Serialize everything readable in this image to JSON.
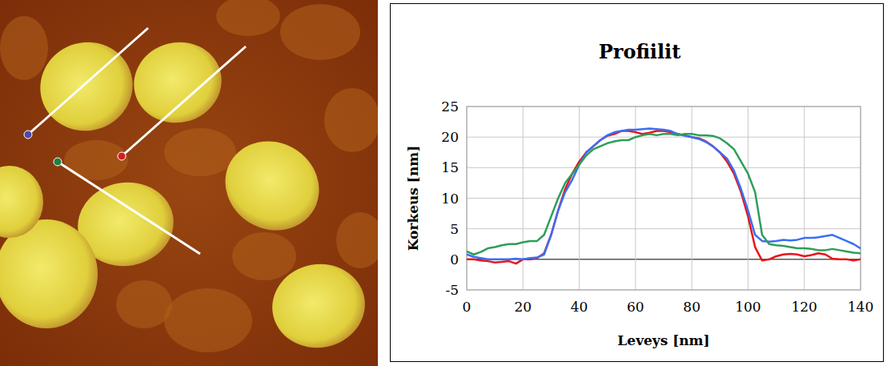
{
  "chart_data": {
    "type": "line",
    "title": "Profiilit",
    "x_label": "Leveys [nm]",
    "y_label": "Korkeus [nm]",
    "x": [
      0,
      2.5,
      5,
      7.5,
      10,
      12.5,
      15,
      17.5,
      20,
      22.5,
      25,
      27.5,
      30,
      32.5,
      35,
      37.5,
      40,
      42.5,
      45,
      47.5,
      50,
      52.5,
      55,
      57.5,
      60,
      62.5,
      65,
      67.5,
      70,
      72.5,
      75,
      77.5,
      80,
      82.5,
      85,
      87.5,
      90,
      92.5,
      95,
      97.5,
      100,
      102.5,
      105,
      107.5,
      110,
      112.5,
      115,
      117.5,
      120,
      122.5,
      125,
      127.5,
      130,
      132.5,
      135,
      137.5,
      140
    ],
    "series": [
      {
        "color": "#e8161b",
        "values": [
          0,
          0,
          -0.2,
          -0.3,
          -0.5,
          -0.4,
          -0.3,
          -0.7,
          0,
          0,
          0.2,
          1,
          4,
          8,
          11.5,
          14,
          16,
          17.5,
          18.5,
          19.5,
          20.2,
          20.5,
          21,
          21,
          20.8,
          20.5,
          20.7,
          21,
          21,
          20.8,
          20.5,
          20.3,
          20,
          19.8,
          19.3,
          18.5,
          17.5,
          16,
          14,
          11,
          7,
          2,
          -0.2,
          0,
          0.5,
          0.8,
          0.9,
          0.8,
          0.5,
          0.7,
          1,
          0.8,
          0.1,
          0,
          0,
          -0.2,
          0
        ]
      },
      {
        "color": "#3a6ef5",
        "values": [
          0.8,
          0.4,
          0.2,
          0,
          0,
          0,
          0,
          0.1,
          0,
          0.2,
          0.3,
          0.8,
          4,
          8,
          11,
          13,
          15.5,
          17.5,
          18.5,
          19.5,
          20.3,
          20.8,
          21,
          21.2,
          21.2,
          21.3,
          21.4,
          21.3,
          21.2,
          21,
          20.5,
          20.2,
          20,
          19.7,
          19.2,
          18.5,
          17.5,
          16.5,
          14.5,
          11.5,
          8,
          4,
          3,
          2.9,
          3,
          3.2,
          3.1,
          3.2,
          3.5,
          3.5,
          3.6,
          3.8,
          4,
          3.5,
          3,
          2.5,
          1.8
        ]
      },
      {
        "color": "#2e9e5a",
        "values": [
          1.3,
          0.8,
          1.2,
          1.8,
          2,
          2.3,
          2.5,
          2.5,
          2.8,
          3,
          3,
          4,
          7,
          10,
          12.5,
          14,
          15.5,
          17,
          18,
          18.5,
          19,
          19.3,
          19.5,
          19.5,
          20,
          20.3,
          20.5,
          20.3,
          20.5,
          20.5,
          20.3,
          20.5,
          20.5,
          20.3,
          20.3,
          20.2,
          19.8,
          19,
          18,
          16,
          14,
          11,
          4,
          2.5,
          2.3,
          2.2,
          2,
          1.8,
          1.8,
          1.7,
          1.5,
          1.5,
          1.7,
          1.5,
          1.3,
          1.1,
          1
        ]
      }
    ],
    "xlim": [
      0,
      140
    ],
    "xticks": [
      0,
      20,
      40,
      60,
      80,
      100,
      120,
      140
    ],
    "ylim": [
      -5,
      25
    ],
    "yticks": [
      -5,
      0,
      5,
      10,
      15,
      20,
      25
    ],
    "grid": true
  }
}
